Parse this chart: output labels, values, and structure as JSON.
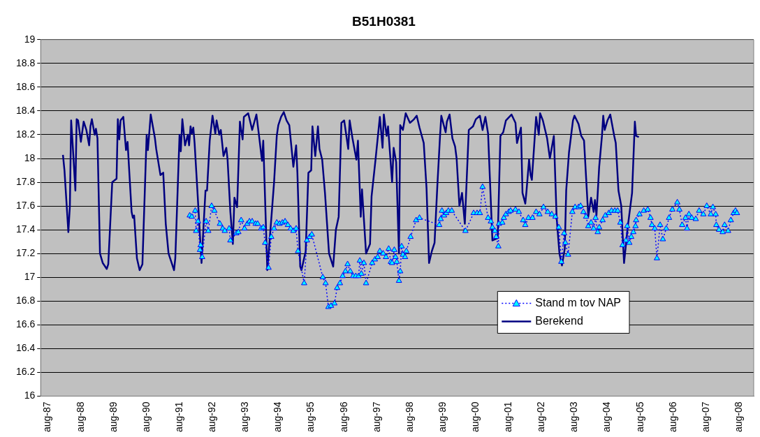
{
  "chart_data": {
    "type": "line",
    "title": "B51H0381",
    "xlim": [
      "1987-05-13",
      "2009-01-10"
    ],
    "xticks": [
      {
        "value": "1987-08",
        "label": "aug-87"
      },
      {
        "value": "1988-08",
        "label": "aug-88"
      },
      {
        "value": "1989-08",
        "label": "aug-89"
      },
      {
        "value": "1990-08",
        "label": "aug-90"
      },
      {
        "value": "1991-08",
        "label": "aug-91"
      },
      {
        "value": "1992-08",
        "label": "aug-92"
      },
      {
        "value": "1993-08",
        "label": "aug-93"
      },
      {
        "value": "1994-08",
        "label": "aug-94"
      },
      {
        "value": "1995-08",
        "label": "aug-95"
      },
      {
        "value": "1996-08",
        "label": "aug-96"
      },
      {
        "value": "1997-08",
        "label": "aug-97"
      },
      {
        "value": "1998-08",
        "label": "aug-98"
      },
      {
        "value": "1999-08",
        "label": "aug-99"
      },
      {
        "value": "2000-08",
        "label": "aug-00"
      },
      {
        "value": "2001-08",
        "label": "aug-01"
      },
      {
        "value": "2002-08",
        "label": "aug-02"
      },
      {
        "value": "2003-08",
        "label": "aug-03"
      },
      {
        "value": "2004-08",
        "label": "aug-04"
      },
      {
        "value": "2005-08",
        "label": "aug-05"
      },
      {
        "value": "2006-08",
        "label": "aug-06"
      },
      {
        "value": "2007-08",
        "label": "aug-07"
      },
      {
        "value": "2008-08",
        "label": "aug-08"
      }
    ],
    "ylim": [
      16,
      19
    ],
    "yticks": [
      16,
      16.2,
      16.4,
      16.6,
      16.8,
      17,
      17.2,
      17.4,
      17.6,
      17.8,
      18,
      18.2,
      18.4,
      18.6,
      18.8,
      19
    ],
    "grid": "y",
    "legend": "bottom right",
    "series": [
      {
        "name": "Stand m tov NAP",
        "color": "#0000ff",
        "marker": "triangle",
        "line_style": "dotted",
        "x": [
          "1991-11-22",
          "1991-12-15",
          "1992-01-22",
          "1992-02-01",
          "1992-02-22",
          "1992-03-15",
          "1992-03-22",
          "1992-04-08",
          "1992-05-22",
          "1992-06-15",
          "1992-07-22",
          "1992-08-22",
          "1992-10-22",
          "1992-11-22",
          "1992-12-15",
          "1993-02-01",
          "1993-02-15",
          "1993-04-22",
          "1993-05-15",
          "1993-06-15",
          "1993-07-22",
          "1993-08-22",
          "1993-09-15",
          "1993-10-15",
          "1993-11-22",
          "1993-12-15",
          "1994-01-22",
          "1994-02-15",
          "1994-03-08",
          "1994-04-15",
          "1994-05-15",
          "1994-06-15",
          "1994-07-15",
          "1994-08-15",
          "1994-09-15",
          "1994-10-15",
          "1994-11-15",
          "1994-12-15",
          "1995-01-15",
          "1995-02-15",
          "1995-03-08",
          "1995-05-15",
          "1995-06-15",
          "1995-07-15",
          "1995-08-08",
          "1995-12-08",
          "1996-01-08",
          "1996-02-08",
          "1996-03-08",
          "1996-04-15",
          "1996-05-15",
          "1996-06-15",
          "1996-07-15",
          "1996-08-15",
          "1996-09-08",
          "1996-10-08",
          "1996-11-08",
          "1996-12-08",
          "1997-01-08",
          "1997-01-22",
          "1997-02-08",
          "1997-03-08",
          "1997-04-01",
          "1997-06-08",
          "1997-07-08",
          "1997-08-08",
          "1997-09-01",
          "1997-10-08",
          "1997-11-08",
          "1997-12-08",
          "1998-01-01",
          "1998-01-15",
          "1998-02-08",
          "1998-02-22",
          "1998-03-08",
          "1998-04-01",
          "1998-04-15",
          "1998-05-01",
          "1998-05-15",
          "1998-06-08",
          "1998-06-22",
          "1998-08-08",
          "1998-10-08",
          "1998-11-15",
          "1999-06-22",
          "1999-07-08",
          "1999-07-22",
          "1999-08-15",
          "1999-09-08",
          "1999-10-01",
          "1999-11-08",
          "2000-04-08",
          "2000-07-08",
          "2000-08-15",
          "2000-09-15",
          "2000-10-15",
          "2000-12-15",
          "2001-01-15",
          "2001-02-01",
          "2001-03-01",
          "2001-03-15",
          "2001-04-08",
          "2001-04-15",
          "2001-05-22",
          "2001-06-08",
          "2001-07-01",
          "2001-08-01",
          "2001-08-22",
          "2001-10-15",
          "2001-11-22",
          "2002-01-08",
          "2002-02-01",
          "2002-03-08",
          "2002-04-22",
          "2002-06-01",
          "2002-07-08",
          "2002-08-22",
          "2002-10-08",
          "2002-11-22",
          "2003-01-01",
          "2003-02-08",
          "2003-03-08",
          "2003-04-08",
          "2003-04-22",
          "2003-05-22",
          "2003-07-08",
          "2003-08-08",
          "2003-09-15",
          "2003-10-08",
          "2003-11-08",
          "2003-12-08",
          "2004-01-01",
          "2004-02-01",
          "2004-03-01",
          "2004-03-22",
          "2004-04-15",
          "2004-05-01",
          "2004-06-08",
          "2004-07-08",
          "2004-08-15",
          "2004-09-15",
          "2004-10-22",
          "2004-11-22",
          "2004-12-22",
          "2005-01-15",
          "2005-02-22",
          "2005-03-08",
          "2005-04-01",
          "2005-04-22",
          "2005-05-15",
          "2005-06-08",
          "2005-06-15",
          "2005-07-22",
          "2005-09-08",
          "2005-10-22",
          "2005-11-22",
          "2005-12-08",
          "2006-01-08",
          "2006-02-01",
          "2006-03-08",
          "2006-04-08",
          "2006-05-15",
          "2006-06-15",
          "2006-07-22",
          "2006-09-15",
          "2006-10-08",
          "2006-11-08",
          "2006-12-15",
          "2007-01-01",
          "2007-01-22",
          "2007-02-22",
          "2007-04-08",
          "2007-05-15",
          "2007-07-01",
          "2007-08-08",
          "2007-09-22",
          "2007-10-15",
          "2007-11-15",
          "2007-11-22",
          "2007-12-22",
          "2008-02-01",
          "2008-02-22",
          "2008-04-01",
          "2008-05-01",
          "2008-06-01",
          "2008-06-22",
          "2008-07-08"
        ],
        "values": [
          17.52,
          17.51,
          17.56,
          17.39,
          17.47,
          17.23,
          17.27,
          17.17,
          17.47,
          17.39,
          17.6,
          17.56,
          17.45,
          17.41,
          17.39,
          17.41,
          17.31,
          17.37,
          17.38,
          17.48,
          17.41,
          17.45,
          17.47,
          17.47,
          17.45,
          17.45,
          17.41,
          17.42,
          17.29,
          17.08,
          17.34,
          17.41,
          17.46,
          17.45,
          17.46,
          17.47,
          17.44,
          17.41,
          17.39,
          17.41,
          17.22,
          16.95,
          17.31,
          17.34,
          17.36,
          17,
          16.95,
          16.75,
          16.76,
          16.78,
          16.91,
          16.95,
          17.01,
          17.05,
          17.11,
          17.05,
          17.01,
          17.01,
          17.01,
          17.14,
          17.03,
          17.12,
          16.95,
          17.12,
          17.15,
          17.17,
          17.22,
          17.2,
          17.17,
          17.24,
          17.13,
          17.12,
          17.23,
          17.17,
          17.13,
          16.97,
          17.05,
          17.26,
          17.19,
          17.17,
          17.22,
          17.34,
          17.48,
          17.5,
          17.44,
          17.49,
          17.56,
          17.52,
          17.54,
          17.56,
          17.56,
          17.39,
          17.54,
          17.54,
          17.54,
          17.76,
          17.5,
          17.47,
          17.42,
          17.39,
          17.34,
          17.26,
          17.45,
          17.46,
          17.5,
          17.53,
          17.55,
          17.56,
          17.57,
          17.55,
          17.48,
          17.44,
          17.5,
          17.5,
          17.55,
          17.53,
          17.59,
          17.55,
          17.53,
          17.51,
          17.42,
          17.13,
          17.37,
          17.29,
          17.19,
          17.55,
          17.59,
          17.59,
          17.6,
          17.55,
          17.51,
          17.43,
          17.46,
          17.41,
          17.5,
          17.38,
          17.42,
          17.48,
          17.52,
          17.54,
          17.56,
          17.56,
          17.56,
          17.46,
          17.27,
          17.31,
          17.43,
          17.29,
          17.34,
          17.38,
          17.43,
          17.48,
          17.53,
          17.56,
          17.57,
          17.5,
          17.44,
          17.41,
          17.16,
          17.44,
          17.32,
          17.41,
          17.5,
          17.57,
          17.63,
          17.57,
          17.44,
          17.5,
          17.41,
          17.53,
          17.5,
          17.49,
          17.56,
          17.53,
          17.6,
          17.53,
          17.59,
          17.53,
          17.44,
          17.4,
          17.38,
          17.44,
          17.39,
          17.48,
          17.54,
          17.56,
          17.54
        ]
      },
      {
        "name": "Berekend",
        "color": "#000080",
        "marker": "none",
        "line_style": "solid",
        "x": [
          "1988-01-15",
          "1988-02-01",
          "1988-02-15",
          "1988-03-15",
          "1988-04-01",
          "1988-04-15",
          "1988-05-01",
          "1988-06-01",
          "1988-06-15",
          "1988-07-01",
          "1988-08-01",
          "1988-09-01",
          "1988-10-01",
          "1988-11-01",
          "1988-11-15",
          "1988-12-01",
          "1989-01-01",
          "1989-01-15",
          "1989-02-01",
          "1989-03-01",
          "1989-04-01",
          "1989-05-15",
          "1989-06-01",
          "1989-07-15",
          "1989-09-01",
          "1989-09-15",
          "1989-10-01",
          "1989-10-15",
          "1989-11-15",
          "1989-12-15",
          "1990-01-01",
          "1990-02-15",
          "1990-03-01",
          "1990-03-15",
          "1990-04-15",
          "1990-05-15",
          "1990-06-15",
          "1990-08-01",
          "1990-08-15",
          "1990-09-15",
          "1990-11-01",
          "1990-11-15",
          "1991-01-01",
          "1991-02-01",
          "1991-03-01",
          "1991-04-01",
          "1991-06-01",
          "1991-06-15",
          "1991-08-01",
          "1991-08-15",
          "1991-09-01",
          "1991-10-01",
          "1991-11-01",
          "1991-11-15",
          "1991-12-01",
          "1991-12-15",
          "1992-01-01",
          "1992-01-15",
          "1992-02-15",
          "1992-04-01",
          "1992-05-15",
          "1992-06-01",
          "1992-07-01",
          "1992-08-01",
          "1992-09-01",
          "1992-09-15",
          "1992-10-15",
          "1992-11-01",
          "1992-12-01",
          "1993-01-01",
          "1993-01-15",
          "1993-02-15",
          "1993-03-15",
          "1993-04-01",
          "1993-05-01",
          "1993-06-01",
          "1993-07-01",
          "1993-07-15",
          "1993-09-01",
          "1993-10-15",
          "1993-12-01",
          "1994-01-01",
          "1994-02-01",
          "1994-02-15",
          "1994-04-01",
          "1994-05-15",
          "1994-06-15",
          "1994-07-15",
          "1994-08-01",
          "1994-09-01",
          "1994-10-01",
          "1994-11-01",
          "1994-12-01",
          "1995-01-15",
          "1995-02-15",
          "1995-03-01",
          "1995-04-01",
          "1995-04-15",
          "1995-06-01",
          "1995-07-01",
          "1995-08-01",
          "1995-08-15",
          "1995-09-15",
          "1995-10-15",
          "1995-11-01",
          "1995-12-01",
          "1996-01-01",
          "1996-02-15",
          "1996-04-01",
          "1996-05-01",
          "1996-06-01",
          "1996-07-01",
          "1996-08-01",
          "1996-09-15",
          "1996-10-01",
          "1996-11-01",
          "1996-12-15",
          "1997-01-01",
          "1997-02-01",
          "1997-02-15",
          "1997-04-01",
          "1997-05-15",
          "1997-06-01",
          "1997-07-15",
          "1997-09-01",
          "1997-10-01",
          "1997-10-15",
          "1997-11-15",
          "1997-12-01",
          "1998-01-15",
          "1998-02-01",
          "1998-03-01",
          "1998-04-01",
          "1998-04-15",
          "1998-05-15",
          "1998-06-15",
          "1998-08-01",
          "1998-09-15",
          "1998-10-15",
          "1998-11-15",
          "1999-01-01",
          "1999-02-01",
          "1999-03-01",
          "1999-04-01",
          "1999-05-01",
          "1999-06-01",
          "1999-07-01",
          "1999-07-15",
          "1999-09-01",
          "1999-09-15",
          "1999-10-15",
          "1999-11-15",
          "1999-12-15",
          "2000-01-01",
          "2000-02-01",
          "2000-03-01",
          "2000-04-01",
          "2000-05-15",
          "2000-07-01",
          "2000-08-01",
          "2000-09-15",
          "2000-10-15",
          "2000-11-15",
          "2000-12-15",
          "2001-02-01",
          "2001-04-01",
          "2001-05-01",
          "2001-06-01",
          "2001-07-01",
          "2001-09-01",
          "2001-10-15",
          "2001-11-01",
          "2001-12-15",
          "2002-01-01",
          "2002-02-01",
          "2002-02-15",
          "2002-03-15",
          "2002-04-01",
          "2002-04-15",
          "2002-06-01",
          "2002-07-01",
          "2002-07-15",
          "2002-08-15",
          "2002-10-01",
          "2002-11-01",
          "2002-12-15",
          "2003-01-15",
          "2003-02-15",
          "2003-03-15",
          "2003-04-15",
          "2003-05-01",
          "2003-06-01",
          "2003-07-15",
          "2003-08-01",
          "2003-09-15",
          "2003-10-15",
          "2003-11-15",
          "2004-01-01",
          "2004-02-01",
          "2004-03-01",
          "2004-03-15",
          "2004-04-01",
          "2004-05-01",
          "2004-06-01",
          "2004-06-15",
          "2004-07-01",
          "2004-08-01",
          "2004-09-01",
          "2004-10-15",
          "2004-11-01",
          "2004-12-01",
          "2005-01-01",
          "2005-02-01",
          "2005-03-15",
          "2005-05-01",
          "2005-06-01",
          "2005-06-15",
          "2005-07-15"
        ],
        "values": [
          18.03,
          17.9,
          17.73,
          17.38,
          17.6,
          18.32,
          18.13,
          17.73,
          18.33,
          18.32,
          18.14,
          18.31,
          18.24,
          18.11,
          18.27,
          18.33,
          18.2,
          18.25,
          18.17,
          17.2,
          17.12,
          17.07,
          17.11,
          17.8,
          17.83,
          18.33,
          18.16,
          18.32,
          18.35,
          18.07,
          18.14,
          17.55,
          17.5,
          17.52,
          17.16,
          17.06,
          17.11,
          18.2,
          18.07,
          18.37,
          18.17,
          18.08,
          17.86,
          17.88,
          17.45,
          17.2,
          17.06,
          17.16,
          18.2,
          18.06,
          18.33,
          18.11,
          18.2,
          18.11,
          18.27,
          18.21,
          18.26,
          18.13,
          17.73,
          17.12,
          17.73,
          17.73,
          18.15,
          18.36,
          18.21,
          18.32,
          18.2,
          18.24,
          18.02,
          18.09,
          17.99,
          17.55,
          17.28,
          17.67,
          17.59,
          18.31,
          18.16,
          18.35,
          18.38,
          18.24,
          18.37,
          18.18,
          17.98,
          18.15,
          17.06,
          17.49,
          17.8,
          18.19,
          18.28,
          18.35,
          18.39,
          18.32,
          18.28,
          17.93,
          18.11,
          17.88,
          17.09,
          17.06,
          17.22,
          17.88,
          17.9,
          18.27,
          18.02,
          18.27,
          18.08,
          17.99,
          17.71,
          17.2,
          17.09,
          17.4,
          17.51,
          18.3,
          18.32,
          18.08,
          18.32,
          18.17,
          17.99,
          18.15,
          17.51,
          17.74,
          17.2,
          17.28,
          17.68,
          17.99,
          18.35,
          18.09,
          18.37,
          18.19,
          18.27,
          17.8,
          18.09,
          17.97,
          17.2,
          18.28,
          18.24,
          18.38,
          18.3,
          18.33,
          18.36,
          18.26,
          18.13,
          17.75,
          17.12,
          17.22,
          17.29,
          17.77,
          18.19,
          18.36,
          18.22,
          18.31,
          18.37,
          18.17,
          18.1,
          18,
          17.6,
          17.71,
          17.45,
          18.24,
          18.27,
          18.33,
          18.36,
          18.24,
          18.35,
          18.21,
          17.31,
          17.33,
          18.19,
          18.22,
          18.32,
          18.37,
          18.3,
          18.13,
          18.26,
          17.71,
          17.62,
          17.73,
          17.99,
          17.86,
          17.82,
          18.35,
          18.2,
          18.38,
          18.32,
          18.17,
          18,
          18.19,
          17.5,
          17.2,
          17.1,
          17.24,
          17.73,
          18.05,
          18.32,
          18.36,
          18.29,
          18.19,
          18.15,
          17.51,
          17.67,
          17.55,
          17.65,
          17.52,
          17.93,
          18.19,
          18.36,
          18.24,
          18.32,
          18.37,
          18.19,
          18.13,
          17.73,
          17.6,
          17.12,
          17.43,
          17.71,
          18.31,
          18.19,
          18.18
        ]
      }
    ]
  }
}
